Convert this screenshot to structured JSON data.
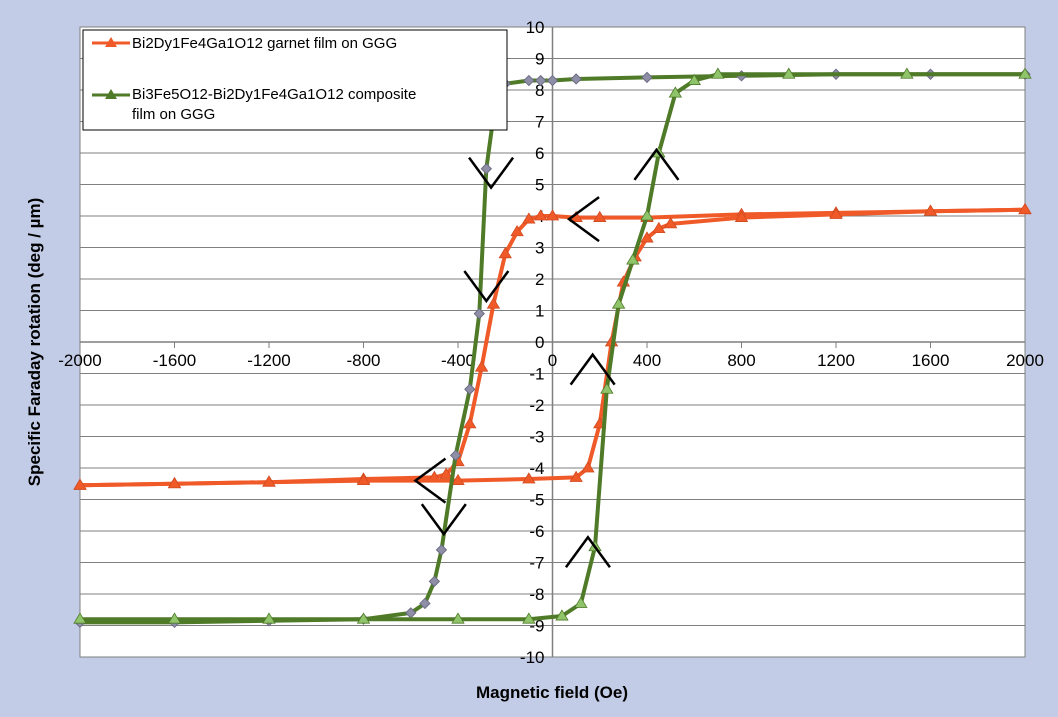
{
  "chart_data": {
    "type": "line",
    "title": "",
    "xlabel": "Magnetic field (Oe)",
    "ylabel": "Specific Faraday rotation (deg / µm)",
    "xlim": [
      -2000,
      2000
    ],
    "ylim": [
      -10,
      10
    ],
    "x_ticks": [
      -2000,
      -1600,
      -1200,
      -800,
      -400,
      0,
      400,
      800,
      1200,
      1600,
      2000
    ],
    "y_ticks": [
      -10,
      -9,
      -8,
      -7,
      -6,
      -5,
      -4,
      -3,
      -2,
      -1,
      0,
      1,
      2,
      3,
      4,
      5,
      6,
      7,
      8,
      9,
      10
    ],
    "grid": "horizontal",
    "legend_position": "top-left",
    "series": [
      {
        "name": "Bi2Dy1Fe4Ga1O12 garnet film on GGG",
        "color": "#f05a28",
        "marker": "triangle",
        "branches": [
          {
            "points": [
              [
                2000,
                4.2
              ],
              [
                1600,
                4.15
              ],
              [
                1200,
                4.1
              ],
              [
                800,
                4.05
              ],
              [
                400,
                3.95
              ],
              [
                200,
                3.95
              ],
              [
                100,
                3.95
              ],
              [
                0,
                4.0
              ],
              [
                -50,
                4.0
              ],
              [
                -100,
                3.9
              ],
              [
                -150,
                3.5
              ],
              [
                -200,
                2.8
              ],
              [
                -250,
                1.2
              ],
              [
                -300,
                -0.8
              ],
              [
                -350,
                -2.6
              ],
              [
                -400,
                -3.8
              ],
              [
                -450,
                -4.2
              ],
              [
                -500,
                -4.3
              ],
              [
                -800,
                -4.35
              ],
              [
                -1200,
                -4.45
              ],
              [
                -1600,
                -4.5
              ],
              [
                -2000,
                -4.55
              ]
            ]
          },
          {
            "points": [
              [
                -2000,
                -4.55
              ],
              [
                -1600,
                -4.5
              ],
              [
                -1200,
                -4.45
              ],
              [
                -800,
                -4.4
              ],
              [
                -400,
                -4.4
              ],
              [
                -100,
                -4.35
              ],
              [
                100,
                -4.3
              ],
              [
                150,
                -4.0
              ],
              [
                200,
                -2.6
              ],
              [
                250,
                0
              ],
              [
                300,
                1.9
              ],
              [
                350,
                2.7
              ],
              [
                400,
                3.3
              ],
              [
                450,
                3.6
              ],
              [
                500,
                3.75
              ],
              [
                800,
                3.95
              ],
              [
                1200,
                4.05
              ],
              [
                1600,
                4.15
              ],
              [
                2000,
                4.2
              ]
            ]
          }
        ]
      },
      {
        "name": "Bi3Fe5O12-Bi2Dy1Fe4Ga1O12 composite film on GGG",
        "color": "#4f7a28",
        "marker": "triangle",
        "branches": [
          {
            "points": [
              [
                2000,
                8.5
              ],
              [
                1600,
                8.5
              ],
              [
                1200,
                8.5
              ],
              [
                800,
                8.45
              ],
              [
                400,
                8.4
              ],
              [
                100,
                8.35
              ],
              [
                0,
                8.3
              ],
              [
                -50,
                8.3
              ],
              [
                -100,
                8.3
              ],
              [
                -200,
                8.2
              ],
              [
                -240,
                7.7
              ],
              [
                -280,
                5.5
              ],
              [
                -310,
                0.9
              ],
              [
                -350,
                -1.5
              ],
              [
                -410,
                -3.6
              ],
              [
                -470,
                -6.6
              ],
              [
                -500,
                -7.6
              ],
              [
                -540,
                -8.3
              ],
              [
                -600,
                -8.6
              ],
              [
                -800,
                -8.8
              ],
              [
                -1200,
                -8.85
              ],
              [
                -1600,
                -8.9
              ],
              [
                -2000,
                -8.9
              ]
            ]
          },
          {
            "points": [
              [
                -2000,
                -8.8
              ],
              [
                -1600,
                -8.8
              ],
              [
                -1200,
                -8.8
              ],
              [
                -800,
                -8.8
              ],
              [
                -400,
                -8.8
              ],
              [
                -100,
                -8.8
              ],
              [
                40,
                -8.7
              ],
              [
                120,
                -8.3
              ],
              [
                180,
                -6.5
              ],
              [
                230,
                -1.5
              ],
              [
                280,
                1.2
              ],
              [
                340,
                2.6
              ],
              [
                400,
                4.0
              ],
              [
                450,
                6.0
              ],
              [
                520,
                7.9
              ],
              [
                600,
                8.3
              ],
              [
                700,
                8.5
              ],
              [
                1000,
                8.5
              ],
              [
                1500,
                8.5
              ],
              [
                2000,
                8.5
              ]
            ]
          }
        ]
      }
    ]
  }
}
